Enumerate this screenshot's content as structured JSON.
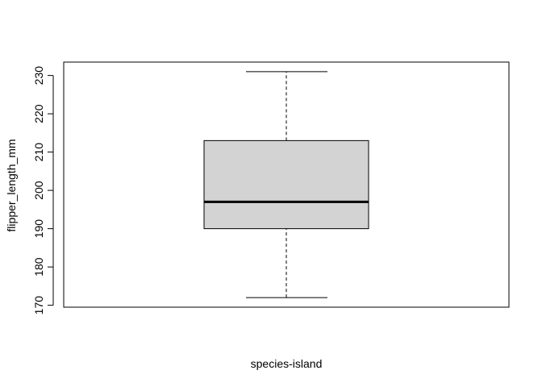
{
  "chart_data": {
    "type": "boxplot",
    "title": "",
    "xlabel": "species-island",
    "ylabel": "flipper_length_mm",
    "ylim": [
      169.5,
      233.5
    ],
    "yticks": [
      170,
      180,
      190,
      200,
      210,
      220,
      230
    ],
    "grid": false,
    "legend": "none",
    "box": {
      "min": 172,
      "q1": 190,
      "median": 197,
      "q3": 213,
      "max": 231
    },
    "colors": {
      "box_fill": "#d3d3d3",
      "stroke": "#000000",
      "background": "#ffffff"
    }
  }
}
